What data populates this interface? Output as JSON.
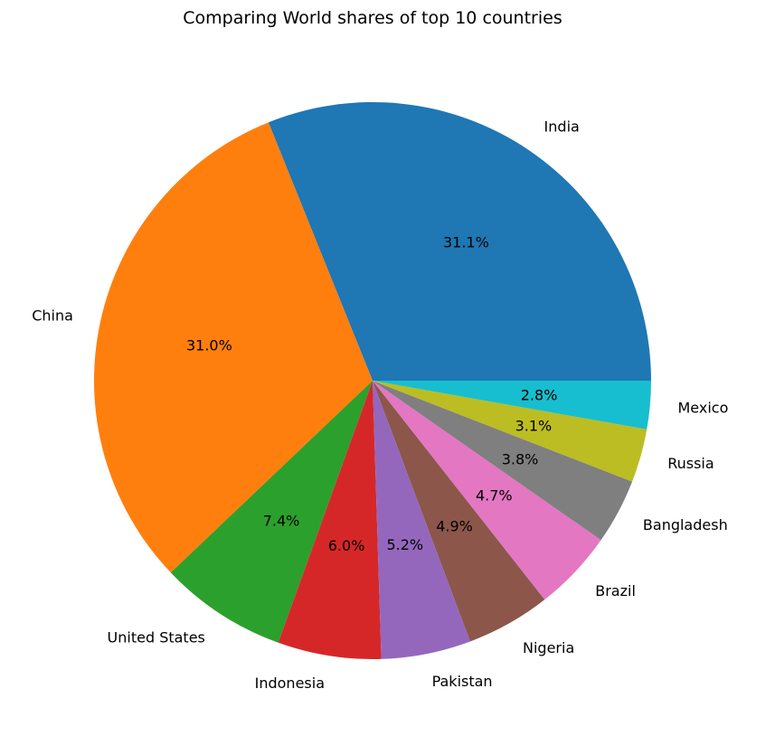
{
  "chart_data": {
    "type": "pie",
    "title": "Comparing World shares of top 10 countries",
    "start_angle_deg": 0,
    "direction": "counterclockwise",
    "slices": [
      {
        "label": "India",
        "value": 31.1,
        "pct_label": "31.1%",
        "color": "#1f77b4"
      },
      {
        "label": "China",
        "value": 31.0,
        "pct_label": "31.0%",
        "color": "#ff7f0e"
      },
      {
        "label": "United States",
        "value": 7.4,
        "pct_label": "7.4%",
        "color": "#2ca02c"
      },
      {
        "label": "Indonesia",
        "value": 6.0,
        "pct_label": "6.0%",
        "color": "#d62728"
      },
      {
        "label": "Pakistan",
        "value": 5.2,
        "pct_label": "5.2%",
        "color": "#9467bd"
      },
      {
        "label": "Nigeria",
        "value": 4.9,
        "pct_label": "4.9%",
        "color": "#8c564b"
      },
      {
        "label": "Brazil",
        "value": 4.7,
        "pct_label": "4.7%",
        "color": "#e377c2"
      },
      {
        "label": "Bangladesh",
        "value": 3.8,
        "pct_label": "3.8%",
        "color": "#7f7f7f"
      },
      {
        "label": "Russia",
        "value": 3.1,
        "pct_label": "3.1%",
        "color": "#bcbd22"
      },
      {
        "label": "Mexico",
        "value": 2.8,
        "pct_label": "2.8%",
        "color": "#17becf"
      }
    ]
  }
}
